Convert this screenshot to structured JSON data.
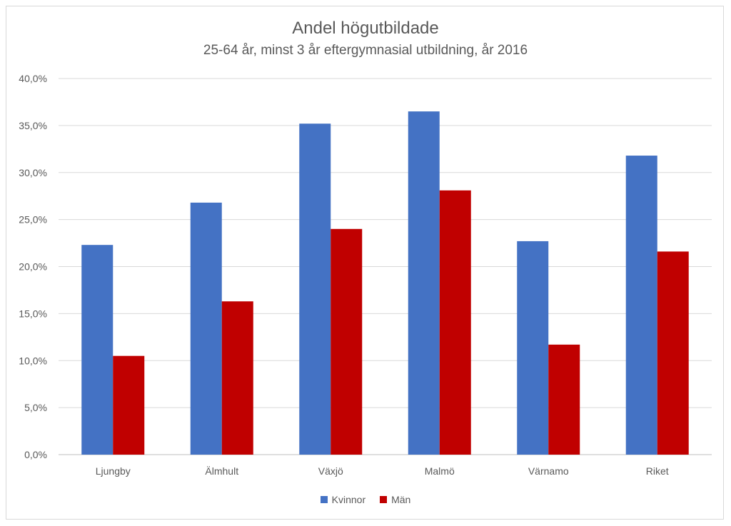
{
  "chart_data": {
    "type": "bar",
    "title": "Andel högutbildade",
    "subtitle": "25-64 år, minst 3 år eftergymnasial utbildning, år 2016",
    "categories": [
      "Ljungby",
      "Älmhult",
      "Växjö",
      "Malmö",
      "Värnamo",
      "Riket"
    ],
    "series": [
      {
        "name": "Kvinnor",
        "color": "#4472c4",
        "values": [
          22.3,
          26.8,
          35.2,
          36.5,
          22.7,
          31.8
        ]
      },
      {
        "name": "Män",
        "color": "#c00000",
        "values": [
          10.5,
          16.3,
          24.0,
          28.1,
          11.7,
          21.6
        ]
      }
    ],
    "ylim": [
      0,
      40
    ],
    "yticks": [
      "0,0%",
      "5,0%",
      "10,0%",
      "15,0%",
      "20,0%",
      "25,0%",
      "30,0%",
      "35,0%",
      "40,0%"
    ],
    "grid": true,
    "legend_position": "bottom"
  }
}
